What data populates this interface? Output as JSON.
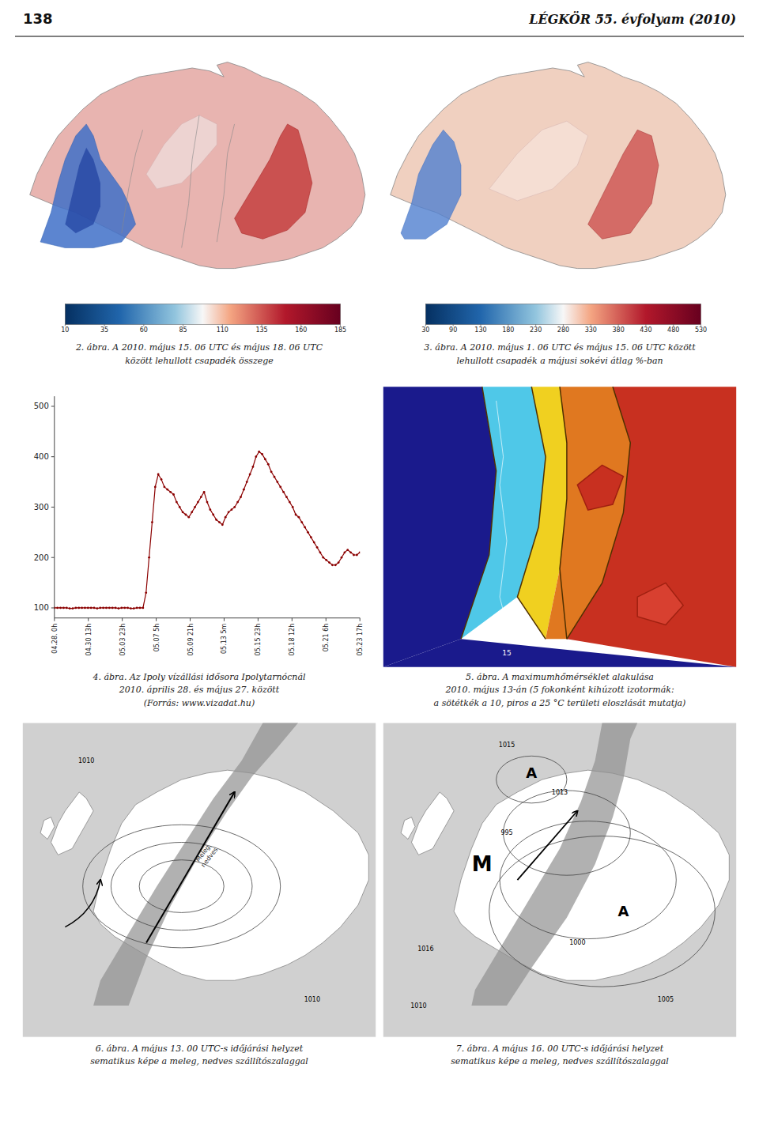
{
  "header": {
    "page_number": "138",
    "title": "LÉGKÖR 55. évfolyam (2010)"
  },
  "chart_data": [
    {
      "type": "colorbar",
      "title": "2. ábra. A 2010. május 15. 06 UTC és május 18. 06 UTC\nközött lehullott csapadék összege",
      "categories": [
        "10",
        "35",
        "60",
        "85",
        "110",
        "135",
        "160",
        "185"
      ]
    },
    {
      "type": "colorbar",
      "title": "3. ábra. A 2010. május 1. 06 UTC és május 15. 06 UTC között\nlehullott csapadék a májusi sokévi átlag %-ban",
      "categories": [
        "30",
        "90",
        "130",
        "180",
        "230",
        "280",
        "330",
        "380",
        "430",
        "480",
        "530"
      ]
    },
    {
      "type": "line",
      "title": "4. ábra. Az Ipoly vízállási idősora Ipolytarnócnál\n2010. április 28. és május 27. között\n(Forrás: www.vizadat.hu)",
      "x": [
        0,
        1,
        2,
        3,
        4,
        5,
        6,
        7,
        8,
        9,
        10,
        11,
        12,
        13,
        14,
        15,
        16,
        17,
        18,
        19,
        20,
        21,
        22,
        23,
        24,
        25,
        26,
        27,
        28,
        29,
        30,
        31,
        32,
        33,
        34,
        35,
        36,
        37,
        38,
        39,
        40,
        41,
        42,
        43,
        44,
        45,
        46,
        47,
        48,
        49,
        50,
        51,
        52,
        53,
        54,
        55,
        56,
        57,
        58,
        59,
        60,
        61,
        62,
        63,
        64,
        65,
        66,
        67,
        68,
        69,
        70,
        71,
        72,
        73,
        74,
        75,
        76,
        77,
        78,
        79,
        80,
        81,
        82,
        83,
        84,
        85,
        86,
        87,
        88,
        89,
        90,
        91,
        92,
        93,
        94,
        95,
        96,
        97,
        98,
        99,
        100
      ],
      "values": [
        100,
        100,
        100,
        100,
        100,
        99,
        99,
        100,
        100,
        100,
        100,
        100,
        100,
        100,
        99,
        100,
        100,
        100,
        100,
        100,
        100,
        99,
        100,
        100,
        100,
        99,
        99,
        100,
        100,
        100,
        130,
        200,
        270,
        340,
        365,
        355,
        340,
        335,
        330,
        325,
        310,
        300,
        290,
        285,
        280,
        290,
        300,
        310,
        320,
        330,
        310,
        295,
        285,
        275,
        270,
        265,
        280,
        290,
        295,
        300,
        310,
        320,
        335,
        350,
        365,
        380,
        400,
        410,
        405,
        395,
        385,
        370,
        360,
        350,
        340,
        330,
        320,
        310,
        300,
        285,
        280,
        270,
        260,
        250,
        240,
        230,
        220,
        210,
        200,
        195,
        190,
        185,
        185,
        190,
        200,
        210,
        215,
        210,
        205,
        205,
        210
      ],
      "color": "#8B0000",
      "marker": "dot",
      "xlim": [
        0,
        100
      ],
      "xticks": [
        {
          "value": 0,
          "label": "04.28. 0h"
        },
        {
          "value": 11.11111111111111,
          "label": "04.30 13h"
        },
        {
          "value": 22.22222222222222,
          "label": "05.03 23h"
        },
        {
          "value": 33.33333333333333,
          "label": "05.07 5h"
        },
        {
          "value": 44.44444444444444,
          "label": "05.09 21h"
        },
        {
          "value": 55.55555555555556,
          "label": "05.13 5m"
        },
        {
          "value": 66.66666666666666,
          "label": "05.15 23h"
        },
        {
          "value": 77.77777777777777,
          "label": "05.18 12h"
        },
        {
          "value": 88.88888888888889,
          "label": "05.21 6h"
        },
        {
          "value": 100,
          "label": "05.23 17h"
        }
      ],
      "ylim": [
        80,
        520
      ],
      "yticks": [
        100,
        200,
        300,
        400,
        500
      ]
    },
    {
      "type": "map",
      "title": "5. ábra. A maximumhőmérséklet alakulása\n2010. május 13-án (5 fokonként kihúzott izotormák:\na sötétkék a 10, piros a 25 °C területi eloszlását mutatja)",
      "annotations": [
        "15"
      ]
    },
    {
      "type": "map",
      "title": "6. ábra. A május 13. 00 UTC-s időjárási helyzet\nsematikus képe a meleg, nedves szállítószalaggal",
      "annotations": [
        "1010",
        "1010",
        "Meleg,\nnedves"
      ]
    },
    {
      "type": "map",
      "title": "7. ábra. A május 16. 00 UTC-s időjárási helyzet\nsematikus képe a meleg, nedves szállítószalaggal",
      "annotations": [
        "M",
        "A",
        "A",
        "1015",
        "1013",
        "995",
        "1000",
        "1005",
        "1010",
        "1016"
      ]
    }
  ]
}
